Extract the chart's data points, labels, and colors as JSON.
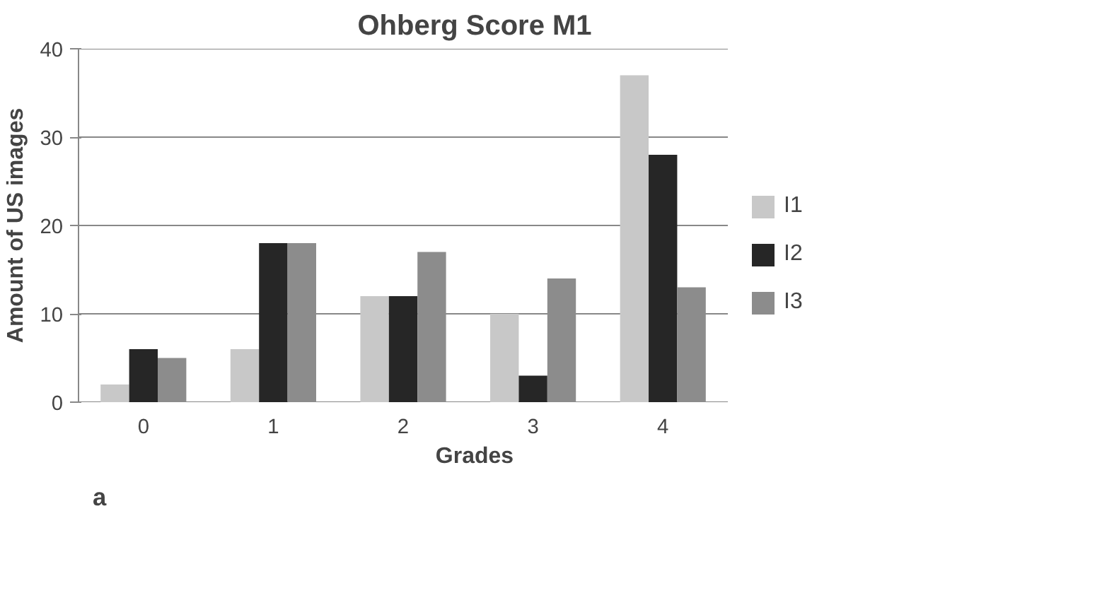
{
  "chart_data": {
    "type": "bar",
    "title": "Ohberg Score M1",
    "xlabel": "Grades",
    "ylabel": "Amount of US images",
    "categories": [
      "0",
      "1",
      "2",
      "3",
      "4"
    ],
    "series": [
      {
        "name": "I1",
        "color": "#c8c8c8",
        "values": [
          2,
          6,
          12,
          10,
          37
        ]
      },
      {
        "name": "I2",
        "color": "#262626",
        "values": [
          6,
          18,
          12,
          3,
          28
        ]
      },
      {
        "name": "I3",
        "color": "#8c8c8c",
        "values": [
          5,
          18,
          17,
          14,
          13
        ]
      }
    ],
    "ylim": [
      0,
      40
    ],
    "yticks": [
      0,
      10,
      20,
      30,
      40
    ],
    "grid": "y",
    "legend": "right",
    "annotations": [
      "a"
    ]
  }
}
